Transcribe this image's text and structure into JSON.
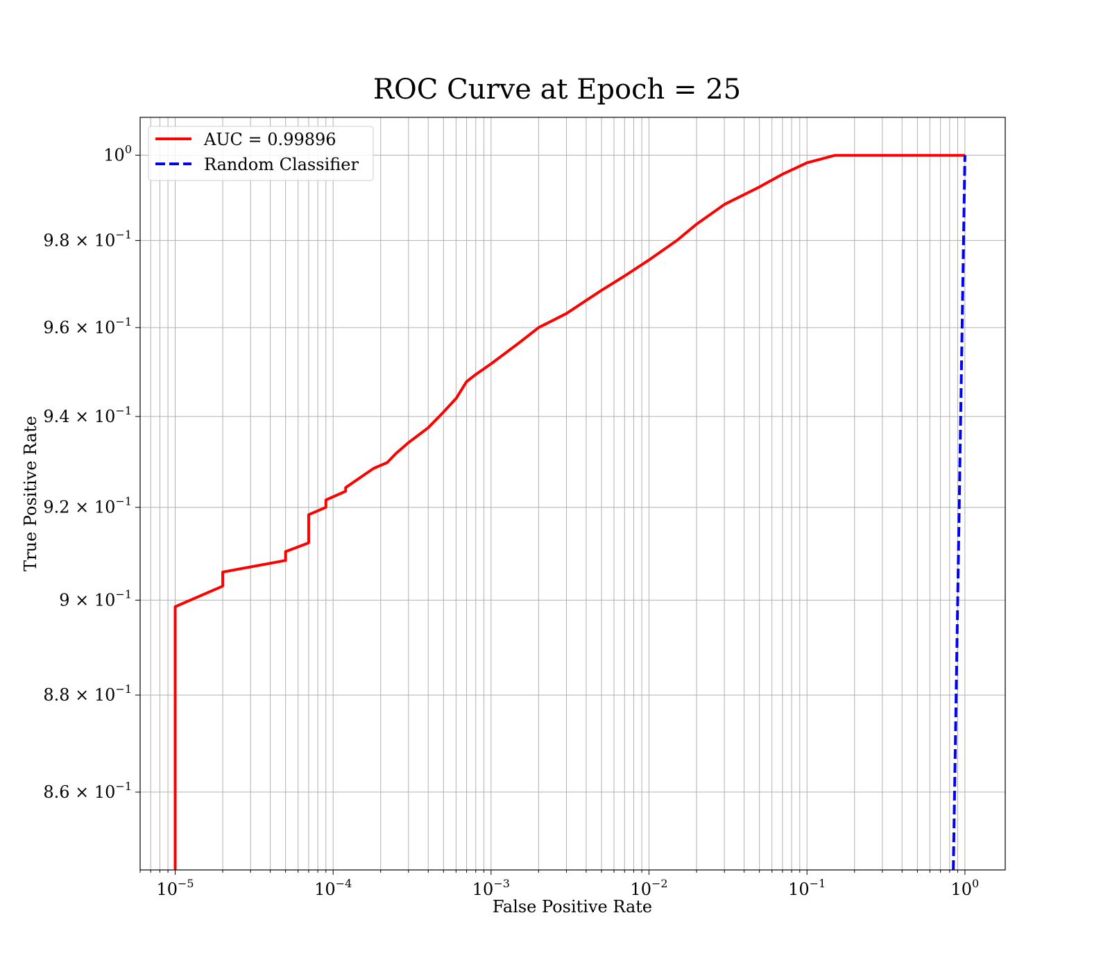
{
  "chart_data": {
    "type": "line",
    "title": "ROC Curve at Epoch = 25",
    "xlabel": "False Positive Rate",
    "ylabel": "True Positive Rate",
    "xscale": "log",
    "yscale": "log",
    "xlim": [
      6e-06,
      1.8
    ],
    "ylim": [
      0.8443,
      1.009
    ],
    "grid": true,
    "grid_minor": true,
    "legend_position": "upper-left",
    "x_ticks": [
      {
        "base": "10",
        "exp": "−5",
        "value": 1e-05
      },
      {
        "base": "10",
        "exp": "−4",
        "value": 0.0001
      },
      {
        "base": "10",
        "exp": "−3",
        "value": 0.001
      },
      {
        "base": "10",
        "exp": "−2",
        "value": 0.01
      },
      {
        "base": "10",
        "exp": "−1",
        "value": 0.1
      },
      {
        "base": "10",
        "exp": "0",
        "value": 1
      }
    ],
    "y_ticks": [
      {
        "mant": "",
        "exp": "0",
        "value": 1.0
      },
      {
        "mant": "9.8",
        "exp": "−1",
        "value": 0.98
      },
      {
        "mant": "9.6",
        "exp": "−1",
        "value": 0.96
      },
      {
        "mant": "9.4",
        "exp": "−1",
        "value": 0.94
      },
      {
        "mant": "9.2",
        "exp": "−1",
        "value": 0.92
      },
      {
        "mant": "9",
        "exp": "−1",
        "value": 0.9
      },
      {
        "mant": "8.8",
        "exp": "−1",
        "value": 0.88
      },
      {
        "mant": "8.6",
        "exp": "−1",
        "value": 0.86
      }
    ],
    "series": [
      {
        "name": "AUC = 0.99896",
        "color": "#ff0000",
        "style": "solid",
        "points": [
          [
            1e-05,
            0.8443
          ],
          [
            1e-05,
            0.8986
          ],
          [
            2e-05,
            0.903
          ],
          [
            2e-05,
            0.906
          ],
          [
            5e-05,
            0.9085
          ],
          [
            5e-05,
            0.9104
          ],
          [
            7e-05,
            0.9123
          ],
          [
            7e-05,
            0.9184
          ],
          [
            9e-05,
            0.92
          ],
          [
            9e-05,
            0.9216
          ],
          [
            0.00012,
            0.9235
          ],
          [
            0.00012,
            0.9243
          ],
          [
            0.00018,
            0.9285
          ],
          [
            0.00022,
            0.9298
          ],
          [
            0.00025,
            0.9318
          ],
          [
            0.0003,
            0.9342
          ],
          [
            0.0004,
            0.9375
          ],
          [
            0.0005,
            0.941
          ],
          [
            0.0006,
            0.944
          ],
          [
            0.0007,
            0.9478
          ],
          [
            0.0008,
            0.9494
          ],
          [
            0.001,
            0.9518
          ],
          [
            0.0015,
            0.9565
          ],
          [
            0.002,
            0.96
          ],
          [
            0.003,
            0.9632
          ],
          [
            0.004,
            0.9662
          ],
          [
            0.005,
            0.9685
          ],
          [
            0.007,
            0.9718
          ],
          [
            0.01,
            0.9755
          ],
          [
            0.015,
            0.98
          ],
          [
            0.02,
            0.9838
          ],
          [
            0.03,
            0.9884
          ],
          [
            0.05,
            0.9925
          ],
          [
            0.07,
            0.9955
          ],
          [
            0.1,
            0.9982
          ],
          [
            0.15,
            0.99995
          ],
          [
            1,
            0.99995
          ]
        ]
      },
      {
        "name": "Random Classifier",
        "color": "#0000ff",
        "style": "dashed",
        "points": [
          [
            0.8443,
            0.8443
          ],
          [
            1,
            1
          ]
        ]
      }
    ]
  }
}
